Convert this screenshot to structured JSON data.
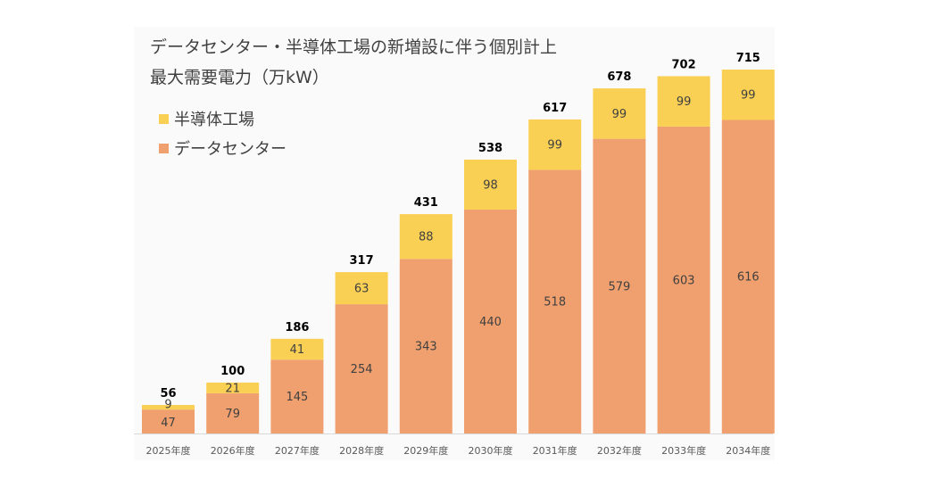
{
  "chart_data": {
    "type": "bar",
    "stacked": true,
    "title": "データセンター・半導体工場の新増設に伴う個別計上",
    "subtitle": "最大需要電力（万kW）",
    "xlabel": "",
    "ylabel": "",
    "ylim": [
      0,
      715
    ],
    "grid": false,
    "legend_position": "top-left",
    "categories": [
      "2025年度",
      "2026年度",
      "2027年度",
      "2028年度",
      "2029年度",
      "2030年度",
      "2031年度",
      "2032年度",
      "2033年度",
      "2034年度"
    ],
    "series": [
      {
        "name": "データセンター",
        "color": "#F0A06E",
        "values": [
          47,
          79,
          145,
          254,
          343,
          440,
          518,
          579,
          603,
          616
        ]
      },
      {
        "name": "半導体工場",
        "color": "#FAD054",
        "values": [
          9,
          21,
          41,
          63,
          88,
          98,
          99,
          99,
          99,
          99
        ]
      }
    ],
    "totals": [
      56,
      100,
      186,
      317,
      431,
      538,
      617,
      678,
      702,
      715
    ]
  },
  "legend": [
    {
      "label": "半導体工場",
      "color": "#FAD054"
    },
    {
      "label": "データセンター",
      "color": "#F0A06E"
    }
  ]
}
